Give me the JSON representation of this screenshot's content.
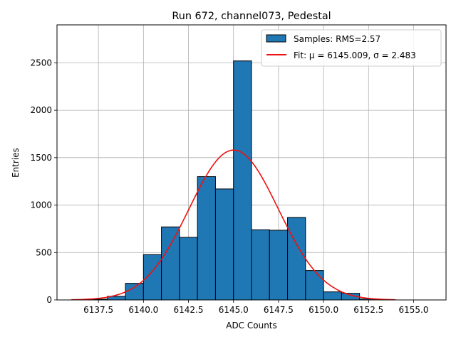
{
  "chart_data": {
    "type": "bar",
    "title": "Run 672, channel073, Pedestal",
    "xlabel": "ADC Counts",
    "ylabel": "Entries",
    "xlim": [
      6135.2,
      6156.8
    ],
    "ylim": [
      0,
      2900
    ],
    "grid": true,
    "legend_position": "top-right",
    "xticks": [
      {
        "value": 6137.5,
        "label": "6137.5"
      },
      {
        "value": 6140.0,
        "label": "6140.0"
      },
      {
        "value": 6142.5,
        "label": "6142.5"
      },
      {
        "value": 6145.0,
        "label": "6145.0"
      },
      {
        "value": 6147.5,
        "label": "6147.5"
      },
      {
        "value": 6150.0,
        "label": "6150.0"
      },
      {
        "value": 6152.5,
        "label": "6152.5"
      },
      {
        "value": 6155.0,
        "label": "6155.0"
      }
    ],
    "yticks": [
      {
        "value": 0,
        "label": "0"
      },
      {
        "value": 500,
        "label": "500"
      },
      {
        "value": 1000,
        "label": "1000"
      },
      {
        "value": 1500,
        "label": "1500"
      },
      {
        "value": 2000,
        "label": "2000"
      },
      {
        "value": 2500,
        "label": "2500"
      }
    ],
    "histogram": {
      "name": "Samples: RMS=2.57",
      "color": "#1f77b4",
      "edge_color": "#000000",
      "bins": [
        {
          "x0": 6137.0,
          "x1": 6138.0,
          "count": 8
        },
        {
          "x0": 6138.0,
          "x1": 6139.0,
          "count": 38
        },
        {
          "x0": 6139.0,
          "x1": 6140.0,
          "count": 175
        },
        {
          "x0": 6140.0,
          "x1": 6141.0,
          "count": 478
        },
        {
          "x0": 6141.0,
          "x1": 6142.0,
          "count": 770
        },
        {
          "x0": 6142.0,
          "x1": 6143.0,
          "count": 660
        },
        {
          "x0": 6143.0,
          "x1": 6144.0,
          "count": 1300
        },
        {
          "x0": 6144.0,
          "x1": 6145.0,
          "count": 1170
        },
        {
          "x0": 6145.0,
          "x1": 6146.0,
          "count": 2520
        },
        {
          "x0": 6146.0,
          "x1": 6147.0,
          "count": 740
        },
        {
          "x0": 6147.0,
          "x1": 6148.0,
          "count": 735
        },
        {
          "x0": 6148.0,
          "x1": 6149.0,
          "count": 870
        },
        {
          "x0": 6149.0,
          "x1": 6150.0,
          "count": 310
        },
        {
          "x0": 6150.0,
          "x1": 6151.0,
          "count": 85
        },
        {
          "x0": 6151.0,
          "x1": 6152.0,
          "count": 70
        },
        {
          "x0": 6152.0,
          "x1": 6153.0,
          "count": 10
        }
      ]
    },
    "fit": {
      "name": "Fit: μ = 6145.009, σ = 2.483",
      "color": "#ee1111",
      "mu": 6145.009,
      "sigma": 2.483,
      "amplitude": 1580,
      "x_range": [
        6136.0,
        6154.0
      ]
    }
  }
}
